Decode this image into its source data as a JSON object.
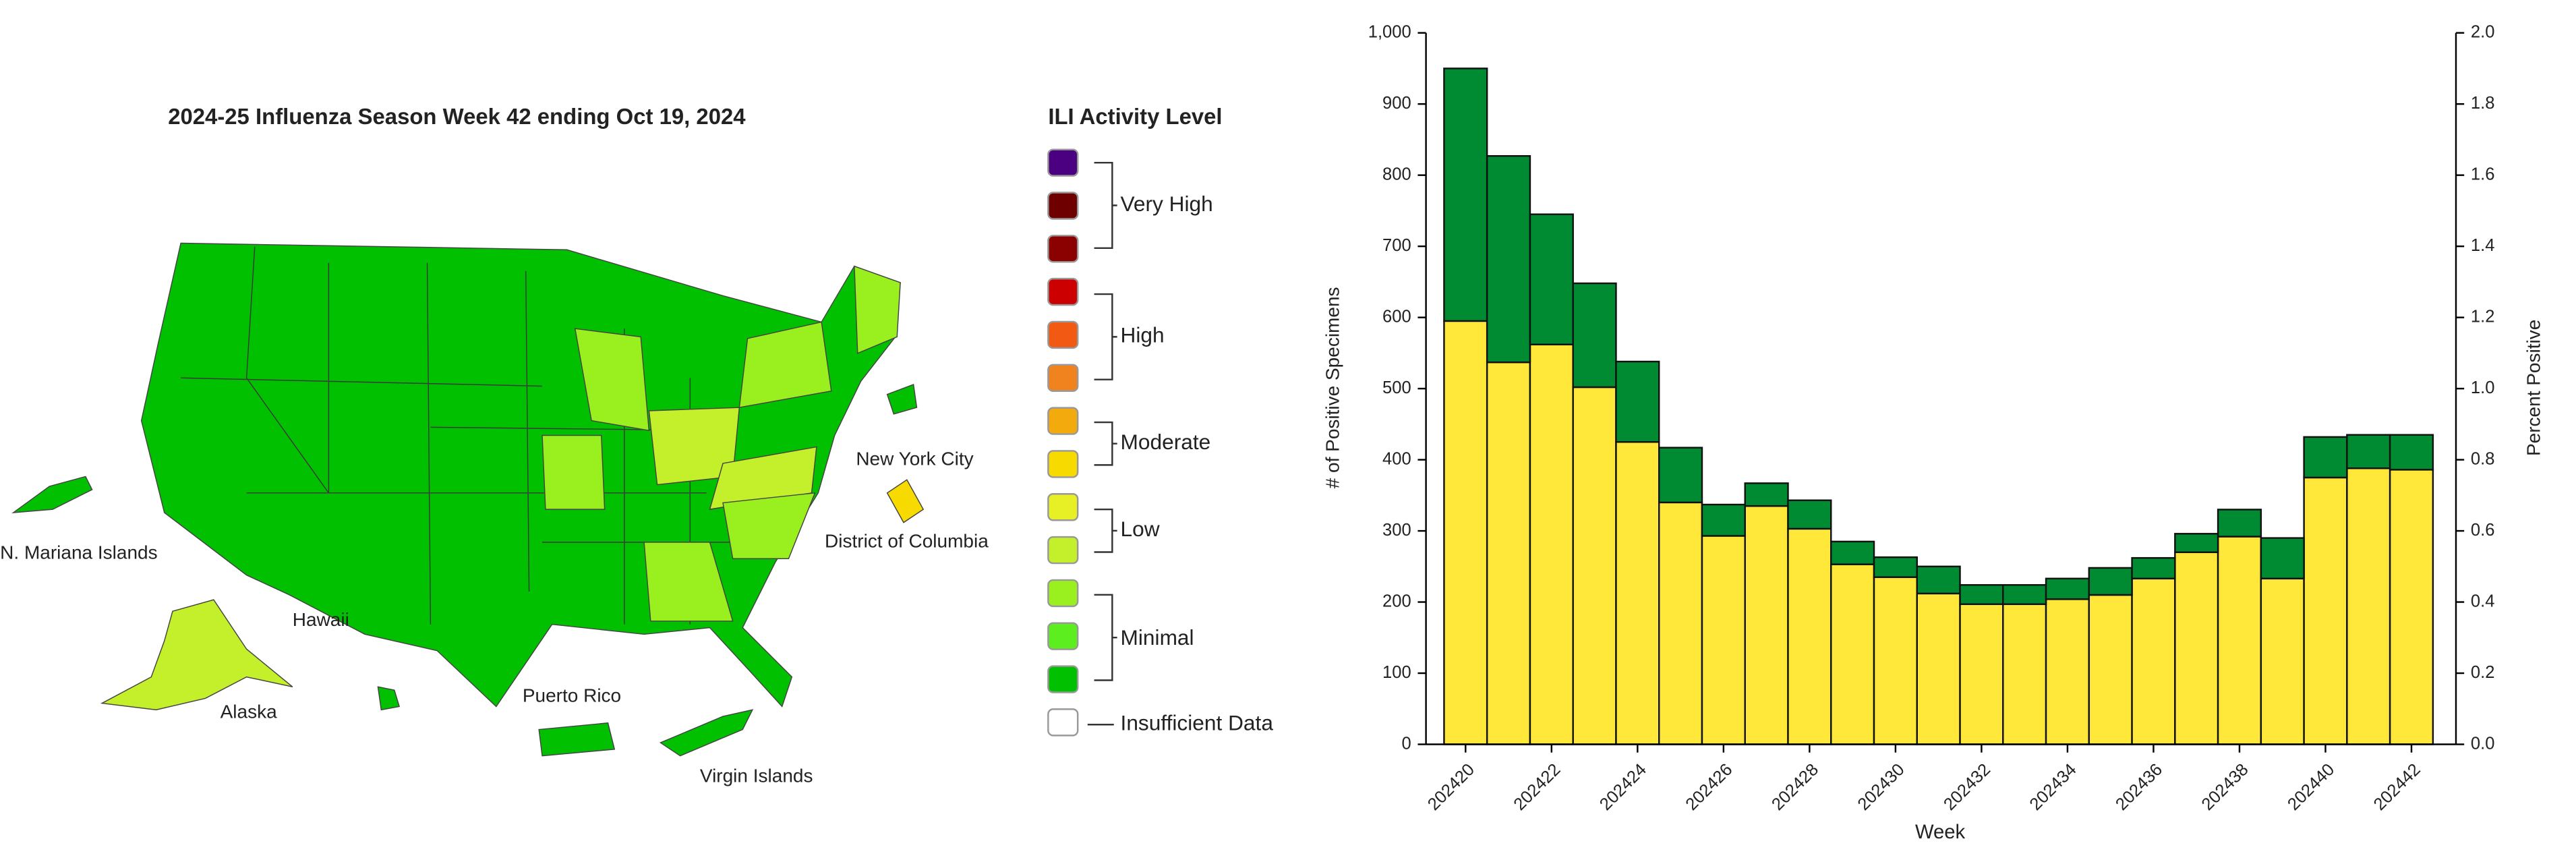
{
  "map": {
    "title": "2024-25 Influenza Season Week 42 ending Oct 19, 2024",
    "legend": {
      "title": "ILI Activity Level",
      "swatches": [
        "#4b0082",
        "#6e0000",
        "#8b0000",
        "#cc0000",
        "#f25a14",
        "#f0831e",
        "#f2aa0c",
        "#f6da00",
        "#e6f024",
        "#c3f02a",
        "#9af01e",
        "#5cee1e",
        "#00c000",
        "#ffffff"
      ],
      "groups": [
        "Very High",
        "High",
        "Moderate",
        "Low",
        "Minimal",
        "Insufficient Data"
      ]
    },
    "labels": [
      "N. Mariana Islands",
      "Hawaii",
      "Alaska",
      "Puerto Rico",
      "Virgin Islands",
      "New York City",
      "District of Columbia"
    ]
  },
  "chart_data": {
    "type": "bar",
    "stacked": true,
    "categories": [
      "202420",
      null,
      "202422",
      null,
      "202424",
      null,
      "202426",
      null,
      "202428",
      null,
      "202430",
      null,
      "202432",
      null,
      "202434",
      null,
      "202436",
      null,
      "202438",
      null,
      "202440",
      null,
      "202442"
    ],
    "series": [
      {
        "color": "#ffe83a",
        "values": [
          595,
          537,
          562,
          502,
          425,
          340,
          293,
          335,
          303,
          253,
          235,
          212,
          197,
          197,
          204,
          210,
          233,
          270,
          292,
          233,
          375,
          388,
          386
        ]
      },
      {
        "color": "#008a32",
        "values": [
          355,
          290,
          183,
          146,
          113,
          77,
          44,
          32,
          40,
          32,
          28,
          38,
          27,
          27,
          29,
          38,
          29,
          26,
          38,
          57,
          57,
          47,
          49
        ]
      }
    ],
    "ylim": [
      0,
      1000
    ],
    "yticks": [
      0,
      100,
      200,
      300,
      400,
      500,
      600,
      700,
      800,
      900,
      {
        "value": 1000,
        "label": "1,000"
      }
    ],
    "y2lim": [
      0,
      2
    ],
    "y2ticks": [
      {
        "value": 0,
        "label": "0.0"
      },
      {
        "value": 0.2,
        "label": "0.2"
      },
      {
        "value": 0.4,
        "label": "0.4"
      },
      {
        "value": 0.6,
        "label": "0.6"
      },
      {
        "value": 0.8,
        "label": "0.8"
      },
      {
        "value": 1,
        "label": "1.0"
      },
      {
        "value": 1.2,
        "label": "1.2"
      },
      {
        "value": 1.4,
        "label": "1.4"
      },
      {
        "value": 1.6,
        "label": "1.6"
      },
      {
        "value": 1.8,
        "label": "1.8"
      },
      {
        "value": 2,
        "label": "2.0"
      }
    ],
    "ylabel": "# of Positive Specimens",
    "y2label": "Percent Positive",
    "xlabel": "Week"
  }
}
